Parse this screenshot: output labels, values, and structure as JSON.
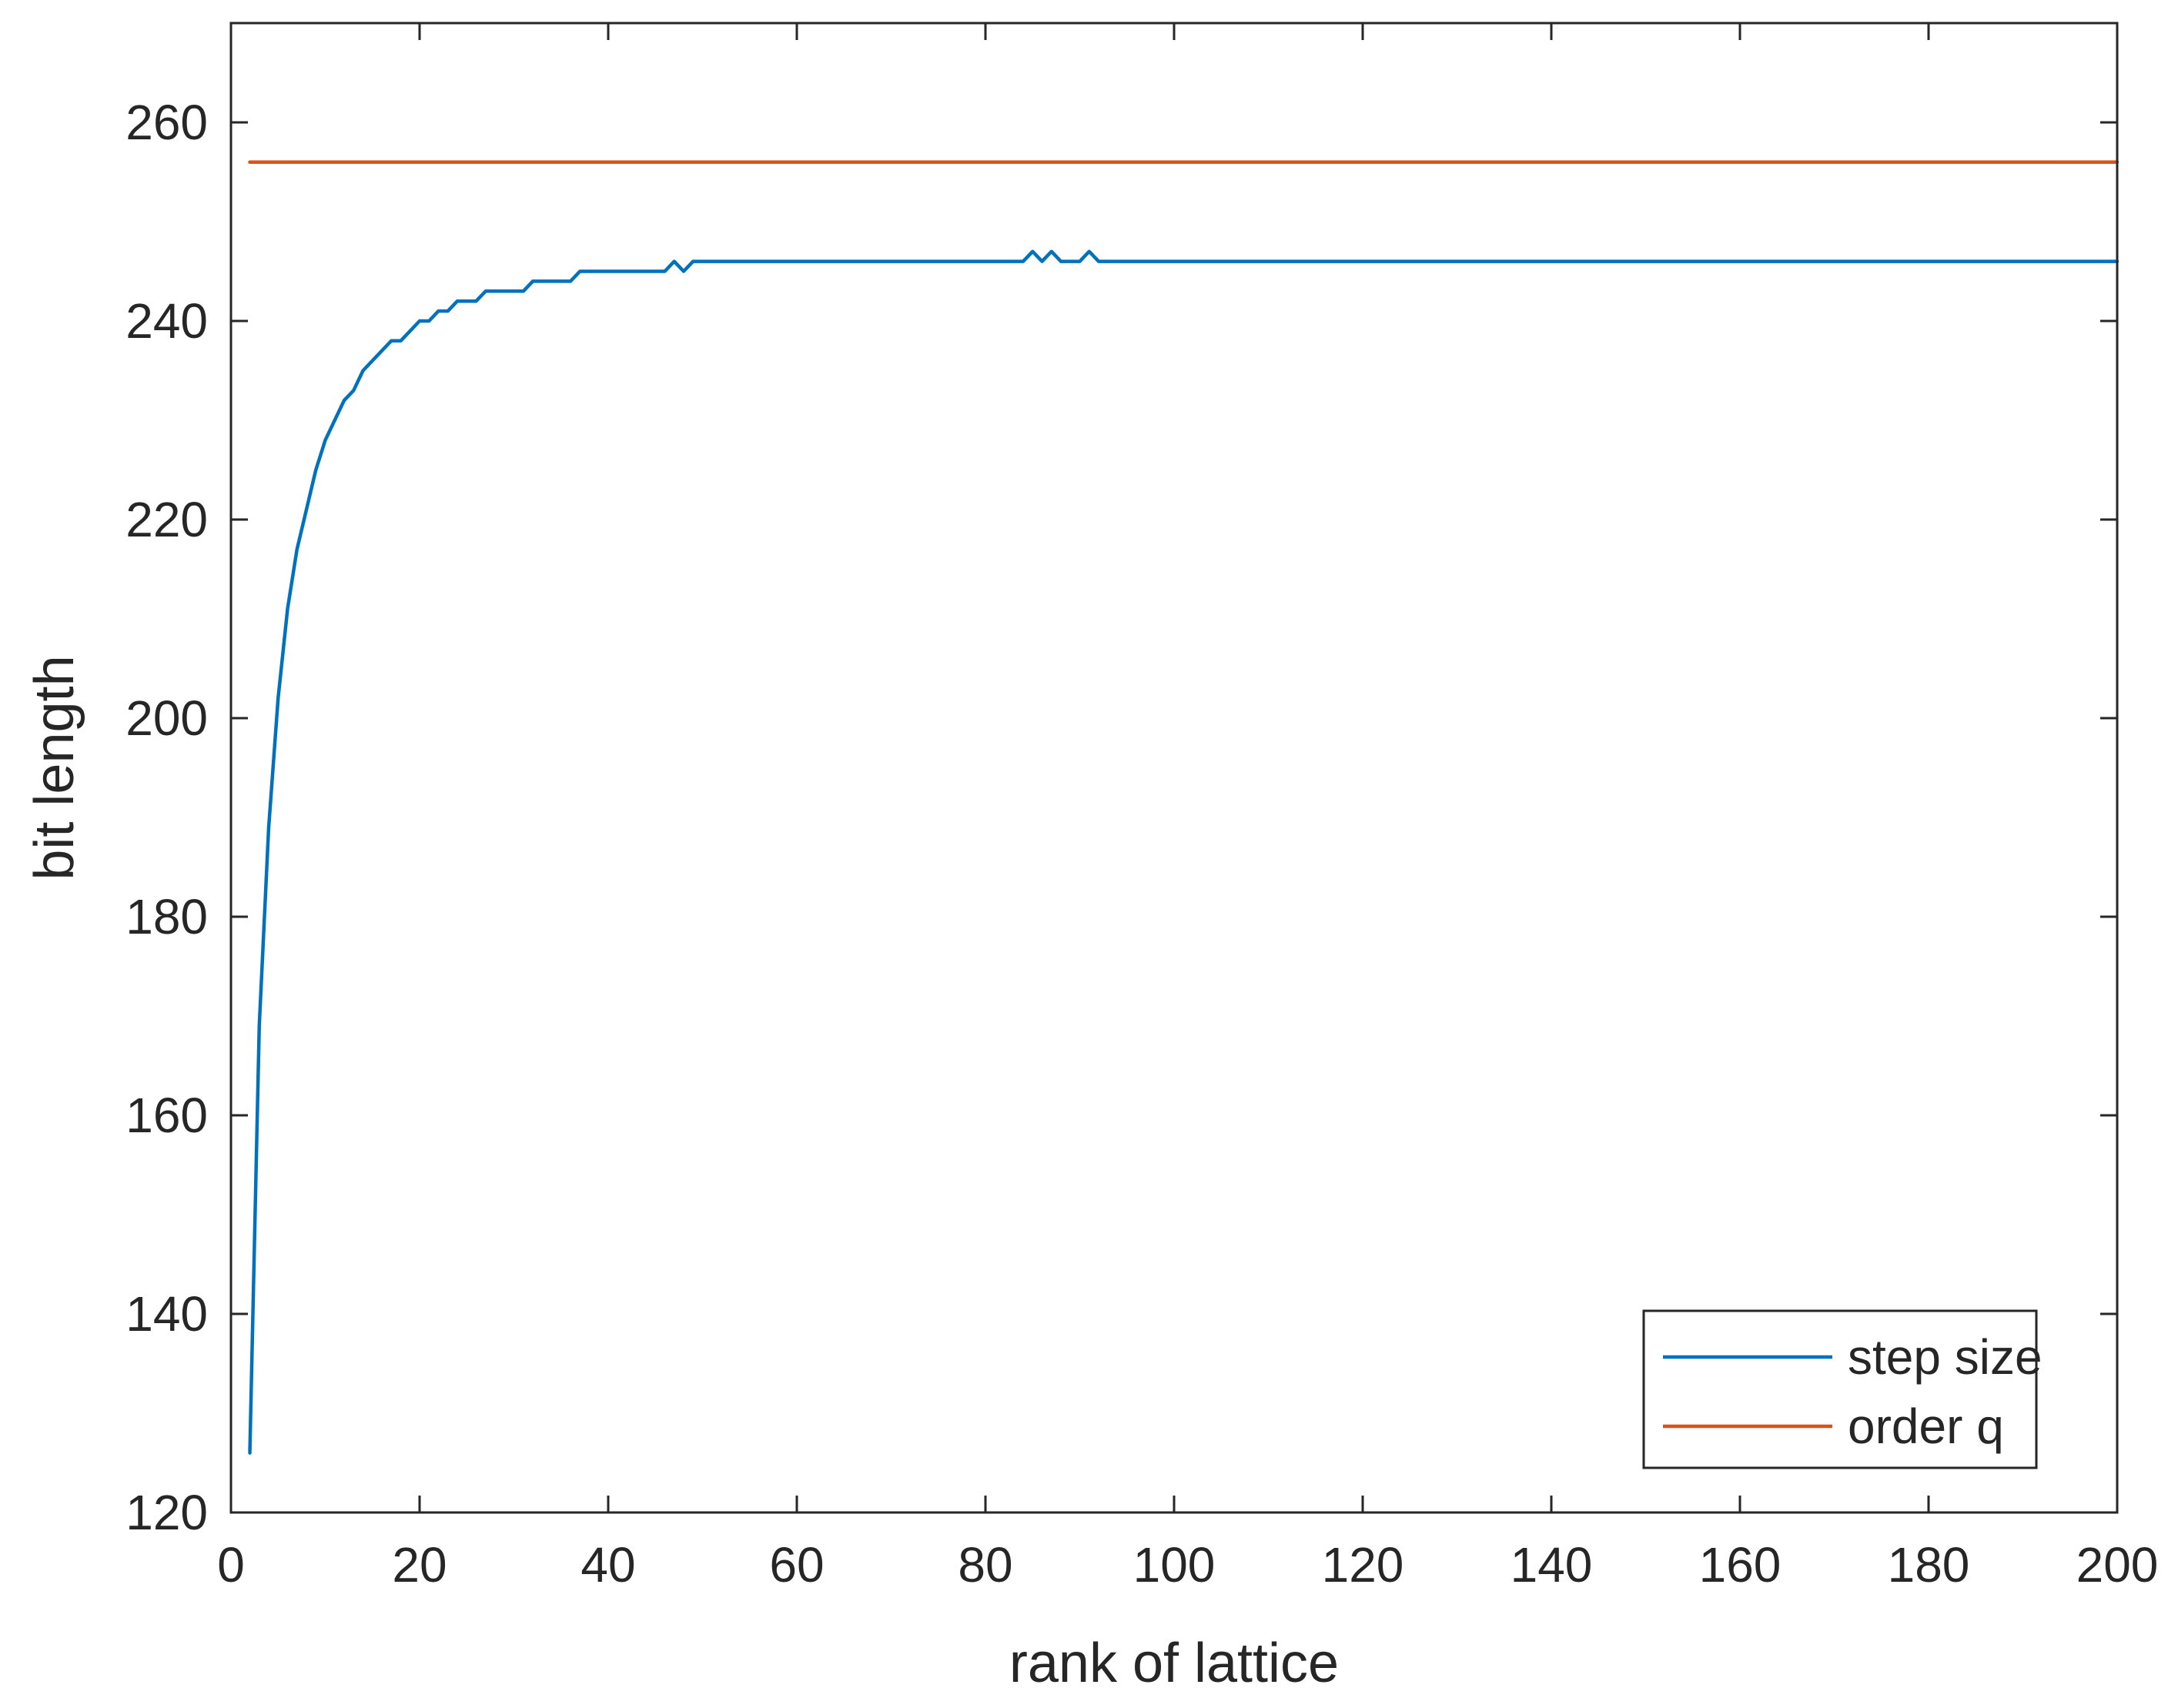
{
  "chart_data": {
    "type": "line",
    "title": "",
    "xlabel": "rank of lattice",
    "ylabel": "bit length",
    "xlim": [
      0,
      200
    ],
    "ylim": [
      120,
      270
    ],
    "xticks": [
      0,
      20,
      40,
      60,
      80,
      100,
      120,
      140,
      160,
      180,
      200
    ],
    "yticks": [
      120,
      140,
      160,
      180,
      200,
      220,
      240,
      260
    ],
    "grid": false,
    "box": true,
    "legend_position": "bottom-right",
    "series": [
      {
        "name": "step size",
        "color": "#0072BD",
        "x": [
          2,
          3,
          4,
          5,
          6,
          7,
          8,
          9,
          10,
          11,
          12,
          13,
          14,
          15,
          16,
          17,
          18,
          19,
          20,
          21,
          22,
          23,
          24,
          25,
          26,
          27,
          28,
          29,
          30,
          31,
          32,
          33,
          34,
          35,
          36,
          37,
          38,
          39,
          40,
          41,
          42,
          43,
          44,
          45,
          46,
          47,
          48,
          49,
          50,
          84,
          85,
          86,
          87,
          88,
          89,
          90,
          91,
          92,
          200
        ],
        "y": [
          126,
          169,
          189,
          202,
          211,
          217,
          221,
          225,
          228,
          230,
          232,
          233,
          235,
          236,
          237,
          238,
          238,
          239,
          240,
          240,
          241,
          241,
          242,
          242,
          242,
          243,
          243,
          243,
          243,
          243,
          244,
          244,
          244,
          244,
          244,
          245,
          245,
          245,
          245,
          245,
          245,
          245,
          245,
          245,
          245,
          246,
          245,
          246,
          246,
          246,
          247,
          246,
          247,
          246,
          246,
          246,
          247,
          246,
          246
        ]
      },
      {
        "name": "order q",
        "color": "#D95319",
        "x": [
          2,
          200
        ],
        "y": [
          256,
          256
        ]
      }
    ]
  }
}
